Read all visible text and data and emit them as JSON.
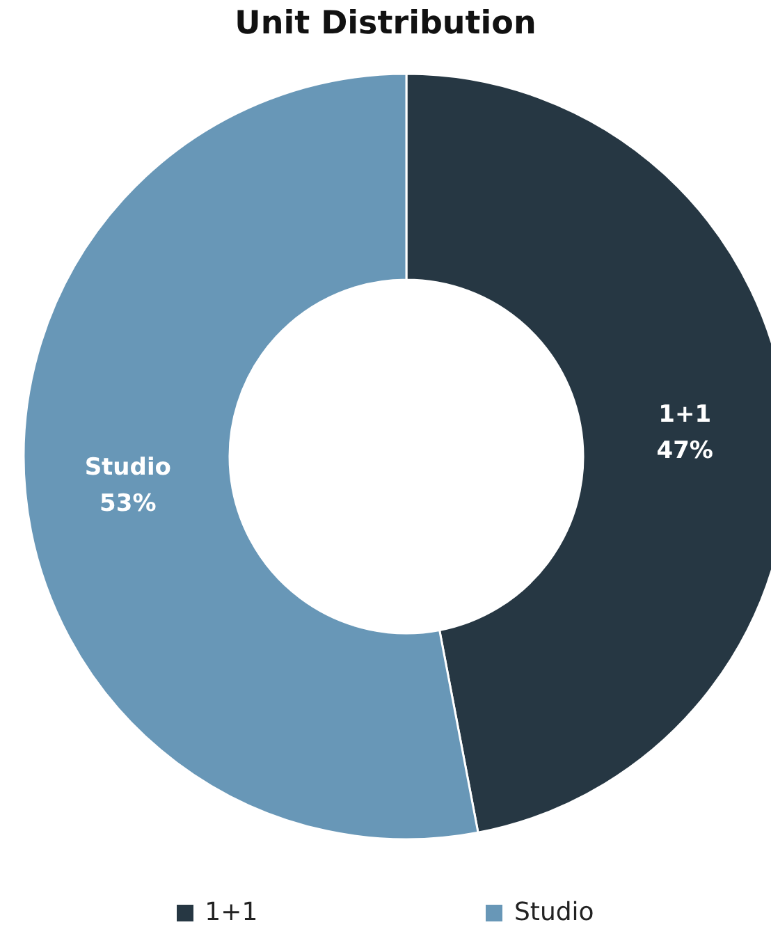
{
  "chart_data": {
    "type": "donut",
    "title": "Unit Distribution",
    "categories": [
      "1+1",
      "Studio"
    ],
    "values": [
      47,
      53
    ],
    "colors": [
      "#263743",
      "#6897b7"
    ],
    "value_labels": [
      "47%",
      "53%"
    ],
    "legend": "bottom"
  }
}
